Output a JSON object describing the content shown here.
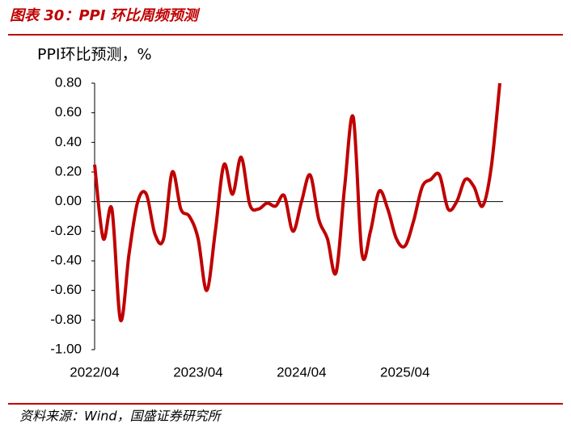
{
  "chart_data": {
    "type": "line",
    "title": "图表 30：PPI 环比周频预测",
    "y_label": "PPI环比预测，%",
    "source": "资料来源：Wind，国盛证券研究所",
    "categories": [
      "2022/04",
      null,
      null,
      null,
      null,
      null,
      null,
      null,
      null,
      null,
      null,
      null,
      "2023/04",
      null,
      null,
      null,
      null,
      null,
      null,
      null,
      null,
      null,
      null,
      null,
      "2024/04",
      null,
      null,
      null,
      null,
      null,
      null,
      null,
      null,
      null,
      null,
      null,
      "2025/04",
      null,
      null,
      null,
      null,
      null,
      null,
      null,
      null,
      null,
      null,
      null
    ],
    "series": [
      {
        "name": "PPI环比预测",
        "color": "#c00000",
        "values": [
          0.25,
          -0.25,
          -0.05,
          -0.8,
          -0.35,
          0.0,
          0.05,
          -0.22,
          -0.25,
          0.2,
          -0.05,
          -0.1,
          -0.25,
          -0.6,
          -0.2,
          0.25,
          0.05,
          0.3,
          -0.02,
          -0.05,
          -0.01,
          -0.03,
          0.04,
          -0.2,
          0.0,
          0.18,
          -0.12,
          -0.25,
          -0.48,
          0.1,
          0.57,
          -0.35,
          -0.2,
          0.07,
          -0.05,
          -0.25,
          -0.3,
          -0.13,
          0.1,
          0.15,
          0.18,
          -0.05,
          0.0,
          0.15,
          0.1,
          -0.03,
          0.23,
          0.8
        ]
      }
    ],
    "ylim": [
      -1.0,
      0.8
    ],
    "yticks": [
      {
        "value": 0.8,
        "label": "0.80"
      },
      {
        "value": 0.6,
        "label": "0.60"
      },
      {
        "value": 0.4,
        "label": "0.40"
      },
      {
        "value": 0.2,
        "label": "0.20"
      },
      {
        "value": 0.0,
        "label": "0.00"
      },
      {
        "value": -0.2,
        "label": "-0.20"
      },
      {
        "value": -0.4,
        "label": "-0.40"
      },
      {
        "value": -0.6,
        "label": "-0.60"
      },
      {
        "value": -0.8,
        "label": "-0.80"
      },
      {
        "value": -1.0,
        "label": "-1.00"
      }
    ],
    "grid": false
  }
}
